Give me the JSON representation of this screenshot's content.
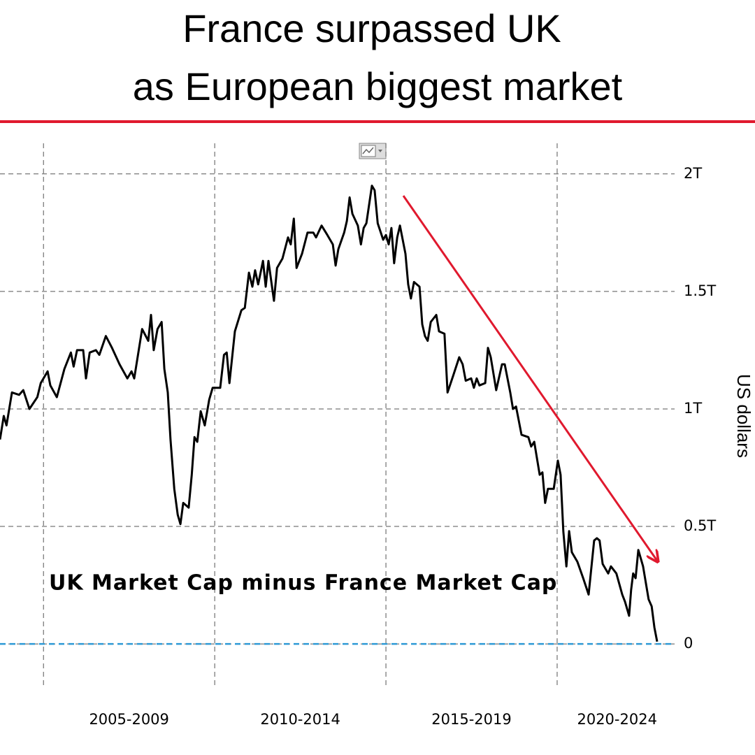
{
  "chart_data": {
    "type": "line",
    "title": [
      "France surpassed UK",
      "as European biggest market"
    ],
    "annotation": "UK Market Cap minus France Market Cap",
    "y_label": "US dollars",
    "color": "#000000",
    "reference_line": {
      "value": 0,
      "color": "#2e9ad6"
    },
    "grid": true,
    "xlim": [
      2003.73,
      2023.43
    ],
    "ylim": [
      -0.19,
      2.16
    ],
    "xticks": [
      {
        "value": 2007.5,
        "label": "2005-2009"
      },
      {
        "value": 2012.5,
        "label": "2010-2014"
      },
      {
        "value": 2017.5,
        "label": "2015-2019"
      },
      {
        "value": 2021.75,
        "label": "2020-2024"
      }
    ],
    "xgrid": [
      2005,
      2010,
      2015,
      2020
    ],
    "yticks": [
      0,
      {
        "value": 0.5,
        "label": "0.5T"
      },
      {
        "value": 1,
        "label": "1T"
      },
      {
        "value": 1.5,
        "label": "1.5T"
      },
      {
        "value": 2,
        "label": "2T"
      }
    ],
    "x": [
      2003.73,
      2003.84,
      2003.92,
      2004.08,
      2004.29,
      2004.41,
      2004.59,
      2004.82,
      2004.92,
      2005.12,
      2005.2,
      2005.39,
      2005.61,
      2005.8,
      2005.88,
      2005.98,
      2006.16,
      2006.24,
      2006.35,
      2006.53,
      2006.63,
      2006.82,
      2007.0,
      2007.22,
      2007.45,
      2007.57,
      2007.65,
      2007.88,
      2008.06,
      2008.14,
      2008.22,
      2008.33,
      2008.45,
      2008.53,
      2008.63,
      2008.71,
      2008.82,
      2008.92,
      2009.0,
      2009.08,
      2009.24,
      2009.33,
      2009.41,
      2009.49,
      2009.59,
      2009.71,
      2009.84,
      2009.94,
      2010.16,
      2010.27,
      2010.35,
      2010.43,
      2010.59,
      2010.78,
      2010.88,
      2011.0,
      2011.1,
      2011.18,
      2011.27,
      2011.41,
      2011.49,
      2011.57,
      2011.73,
      2011.82,
      2011.98,
      2012.14,
      2012.22,
      2012.31,
      2012.39,
      2012.55,
      2012.71,
      2012.88,
      2012.96,
      2013.12,
      2013.29,
      2013.45,
      2013.53,
      2013.61,
      2013.78,
      2013.86,
      2013.94,
      2014.02,
      2014.18,
      2014.27,
      2014.35,
      2014.43,
      2014.59,
      2014.67,
      2014.76,
      2014.92,
      2015.0,
      2015.08,
      2015.16,
      2015.24,
      2015.33,
      2015.41,
      2015.57,
      2015.65,
      2015.73,
      2015.82,
      2015.98,
      2016.06,
      2016.14,
      2016.22,
      2016.31,
      2016.47,
      2016.55,
      2016.71,
      2016.8,
      2016.96,
      2017.14,
      2017.24,
      2017.33,
      2017.49,
      2017.57,
      2017.65,
      2017.73,
      2017.9,
      2017.98,
      2018.06,
      2018.22,
      2018.39,
      2018.47,
      2018.63,
      2018.71,
      2018.8,
      2018.96,
      2019.16,
      2019.24,
      2019.33,
      2019.49,
      2019.57,
      2019.65,
      2019.73,
      2019.9,
      2020.02,
      2020.1,
      2020.18,
      2020.27,
      2020.35,
      2020.43,
      2020.59,
      2020.76,
      2020.92,
      2021.08,
      2021.16,
      2021.24,
      2021.33,
      2021.49,
      2021.57,
      2021.73,
      2021.9,
      2021.98,
      2022.1,
      2022.16,
      2022.22,
      2022.29,
      2022.37,
      2022.51,
      2022.67,
      2022.76,
      2022.84,
      2022.92
    ],
    "values": [
      0.87,
      0.97,
      0.93,
      1.07,
      1.06,
      1.08,
      1.0,
      1.05,
      1.11,
      1.16,
      1.1,
      1.05,
      1.17,
      1.24,
      1.18,
      1.25,
      1.25,
      1.13,
      1.24,
      1.25,
      1.23,
      1.31,
      1.26,
      1.19,
      1.13,
      1.16,
      1.13,
      1.34,
      1.29,
      1.4,
      1.25,
      1.34,
      1.37,
      1.17,
      1.07,
      0.87,
      0.66,
      0.55,
      0.51,
      0.6,
      0.58,
      0.72,
      0.88,
      0.86,
      0.99,
      0.93,
      1.04,
      1.09,
      1.09,
      1.23,
      1.24,
      1.11,
      1.33,
      1.42,
      1.43,
      1.58,
      1.52,
      1.59,
      1.53,
      1.63,
      1.52,
      1.63,
      1.46,
      1.6,
      1.64,
      1.73,
      1.7,
      1.81,
      1.6,
      1.66,
      1.75,
      1.75,
      1.73,
      1.78,
      1.74,
      1.7,
      1.61,
      1.68,
      1.75,
      1.8,
      1.9,
      1.83,
      1.78,
      1.7,
      1.77,
      1.79,
      1.95,
      1.93,
      1.79,
      1.72,
      1.74,
      1.7,
      1.77,
      1.62,
      1.73,
      1.78,
      1.66,
      1.53,
      1.47,
      1.54,
      1.52,
      1.36,
      1.31,
      1.29,
      1.37,
      1.4,
      1.33,
      1.32,
      1.07,
      1.14,
      1.22,
      1.19,
      1.12,
      1.13,
      1.09,
      1.13,
      1.1,
      1.11,
      1.26,
      1.22,
      1.08,
      1.19,
      1.19,
      1.07,
      1.0,
      1.01,
      0.89,
      0.88,
      0.84,
      0.86,
      0.72,
      0.73,
      0.6,
      0.66,
      0.66,
      0.78,
      0.72,
      0.48,
      0.33,
      0.48,
      0.39,
      0.35,
      0.28,
      0.21,
      0.44,
      0.45,
      0.44,
      0.34,
      0.3,
      0.33,
      0.3,
      0.21,
      0.18,
      0.12,
      0.23,
      0.3,
      0.28,
      0.4,
      0.33,
      0.19,
      0.16,
      0.07,
      0.01
    ]
  }
}
